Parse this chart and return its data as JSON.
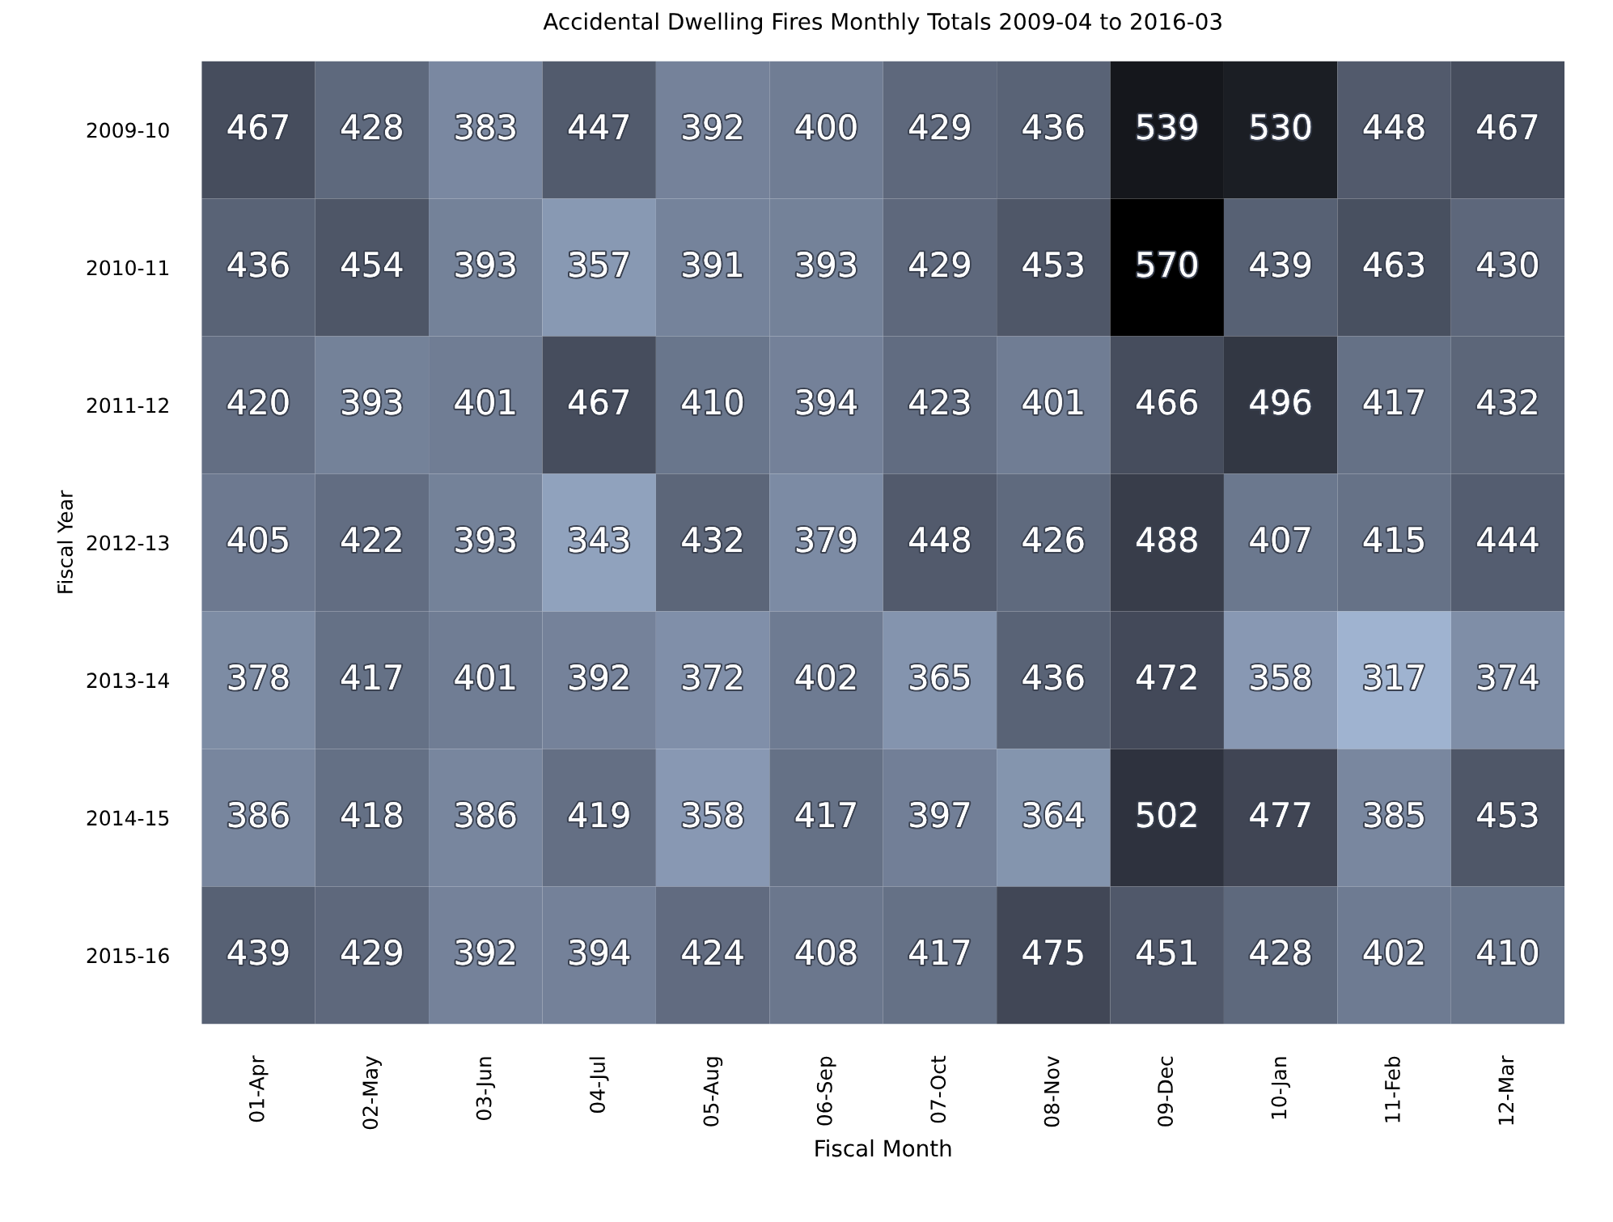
{
  "chart_data": {
    "type": "heatmap",
    "title": "Accidental Dwelling Fires Monthly Totals 2009-04 to 2016-03",
    "xlabel": "Fiscal Month",
    "ylabel": "Fiscal Year",
    "categories": [
      "01-Apr",
      "02-May",
      "03-Jun",
      "04-Jul",
      "05-Aug",
      "06-Sep",
      "07-Oct",
      "08-Nov",
      "09-Dec",
      "10-Jan",
      "11-Feb",
      "12-Mar"
    ],
    "y_categories": [
      "2009-10",
      "2010-11",
      "2011-12",
      "2012-13",
      "2013-14",
      "2014-15",
      "2015-16"
    ],
    "cells": [
      [
        467,
        428,
        383,
        447,
        392,
        400,
        429,
        436,
        539,
        530,
        448,
        467
      ],
      [
        436,
        454,
        393,
        357,
        391,
        393,
        429,
        453,
        570,
        439,
        463,
        430
      ],
      [
        420,
        393,
        401,
        467,
        410,
        394,
        423,
        401,
        466,
        496,
        417,
        432
      ],
      [
        405,
        422,
        393,
        343,
        432,
        379,
        448,
        426,
        488,
        407,
        415,
        444
      ],
      [
        378,
        417,
        401,
        392,
        372,
        402,
        365,
        436,
        472,
        358,
        317,
        374
      ],
      [
        386,
        418,
        386,
        419,
        358,
        417,
        397,
        364,
        502,
        477,
        385,
        453
      ],
      [
        439,
        429,
        392,
        394,
        424,
        408,
        417,
        475,
        451,
        428,
        402,
        410
      ]
    ],
    "data_labels": true
  }
}
